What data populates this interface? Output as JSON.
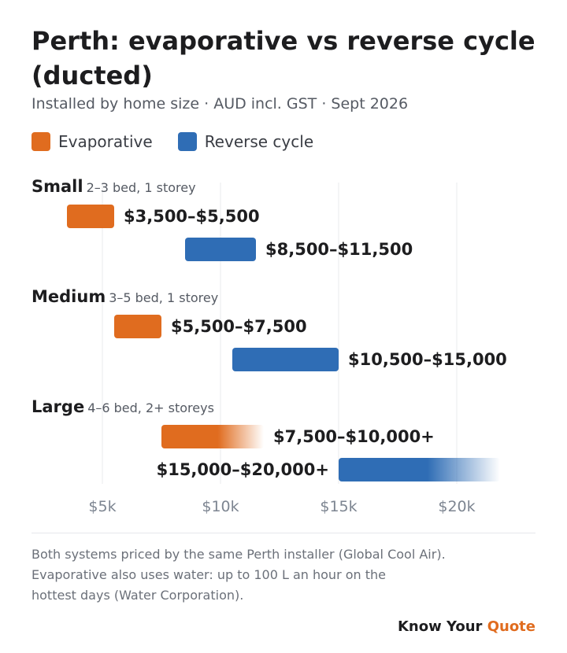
{
  "title": "Perth: evaporative vs reverse cycle (ducted)",
  "subtitle": "Installed by home size · AUD incl. GST · Sept 2026",
  "colors": {
    "evaporative": "#e06c1f",
    "reverse_cycle": "#2f6db5",
    "grid": "#e9ebee",
    "tick": "#7d8591"
  },
  "chart_data": {
    "type": "bar",
    "orientation": "horizontal-range",
    "xlim": [
      3000,
      22000
    ],
    "xticks": [
      5000,
      10000,
      15000,
      20000
    ],
    "xtick_labels": [
      "$5k",
      "$10k",
      "$15k",
      "$20k"
    ],
    "grid": true,
    "legend": "top-left",
    "series_names": [
      "Evaporative",
      "Reverse cycle"
    ],
    "groups": [
      {
        "name": "Small",
        "detail": "2–3 bed, 1 storey",
        "bars": [
          {
            "series": "Evaporative",
            "min": 3500,
            "max": 5500,
            "label": "$3,500–$5,500",
            "open_ended": false
          },
          {
            "series": "Reverse cycle",
            "min": 8500,
            "max": 11500,
            "label": "$8,500–$11,500",
            "open_ended": false
          }
        ]
      },
      {
        "name": "Medium",
        "detail": "3–5 bed, 1 storey",
        "bars": [
          {
            "series": "Evaporative",
            "min": 5500,
            "max": 7500,
            "label": "$5,500–$7,500",
            "open_ended": false
          },
          {
            "series": "Reverse cycle",
            "min": 10500,
            "max": 15000,
            "label": "$10,500–$15,000",
            "open_ended": false
          }
        ]
      },
      {
        "name": "Large",
        "detail": "4–6 bed, 2+ storeys",
        "bars": [
          {
            "series": "Evaporative",
            "min": 7500,
            "max": 10000,
            "label": "$7,500–$10,000+",
            "open_ended": true
          },
          {
            "series": "Reverse cycle",
            "min": 15000,
            "max": 20000,
            "label": "$15,000–$20,000+",
            "open_ended": true
          }
        ]
      }
    ]
  },
  "footnote": [
    "Both systems priced by the same Perth installer (Global Cool Air).",
    "Evaporative also uses water: up to 100 L an hour on the",
    "hottest days (Water Corporation)."
  ],
  "brand": {
    "main": "Know Your",
    "accent": "Quote"
  }
}
